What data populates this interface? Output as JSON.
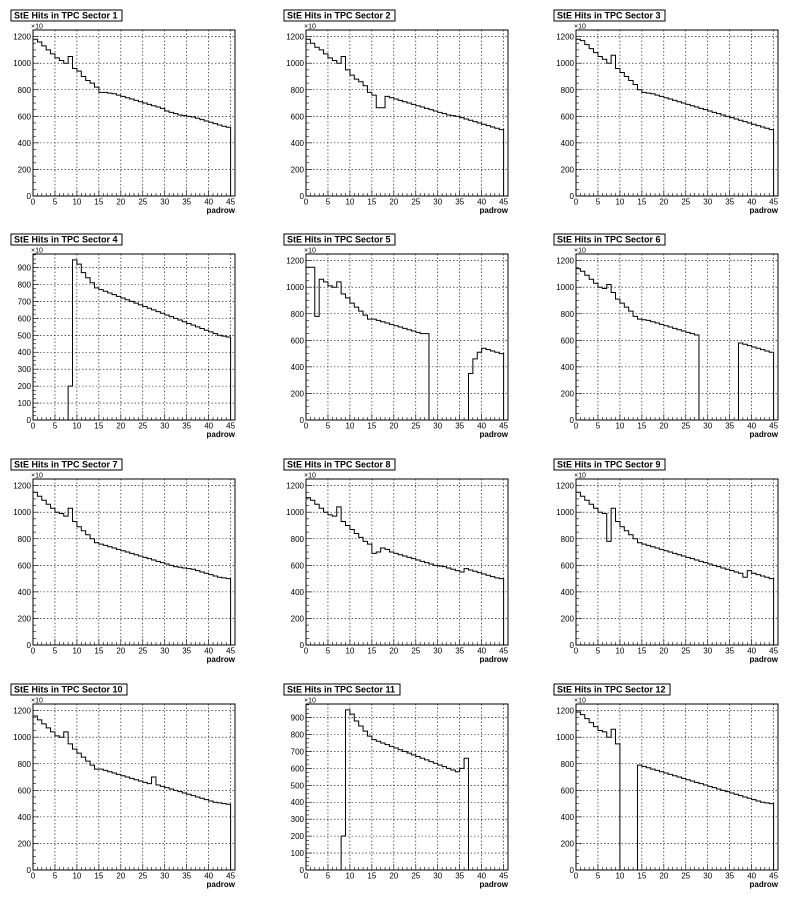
{
  "chart_data": [
    {
      "type": "histogram",
      "title": "StE Hits in TPC Sector 1",
      "xlabel": "padrow",
      "ylabel": "",
      "y_exponent": "10",
      "xlim": [
        0,
        46
      ],
      "ylim": [
        0,
        1250
      ],
      "x_ticks": [
        0,
        5,
        10,
        15,
        20,
        25,
        30,
        35,
        40,
        45
      ],
      "y_ticks": [
        0,
        200,
        400,
        600,
        800,
        1000,
        1200
      ],
      "grid": true,
      "bins_start": 0,
      "bin_width": 1,
      "values": [
        1180,
        1160,
        1130,
        1100,
        1070,
        1040,
        1020,
        1000,
        1050,
        960,
        940,
        900,
        870,
        850,
        820,
        780,
        780,
        775,
        770,
        760,
        750,
        740,
        730,
        720,
        710,
        700,
        690,
        680,
        670,
        660,
        640,
        630,
        620,
        610,
        605,
        600,
        595,
        585,
        575,
        565,
        555,
        545,
        535,
        525,
        518,
        0
      ]
    },
    {
      "type": "histogram",
      "title": "StE Hits in TPC Sector 2",
      "xlabel": "padrow",
      "ylabel": "",
      "y_exponent": "10",
      "xlim": [
        0,
        46
      ],
      "ylim": [
        0,
        1250
      ],
      "x_ticks": [
        0,
        5,
        10,
        15,
        20,
        25,
        30,
        35,
        40,
        45
      ],
      "y_ticks": [
        0,
        200,
        400,
        600,
        800,
        1000,
        1200
      ],
      "grid": true,
      "bins_start": 0,
      "bin_width": 1,
      "values": [
        1180,
        1150,
        1120,
        1100,
        1070,
        1040,
        1020,
        1000,
        1050,
        950,
        910,
        880,
        860,
        830,
        780,
        760,
        665,
        665,
        750,
        740,
        730,
        720,
        710,
        700,
        690,
        680,
        670,
        660,
        650,
        640,
        630,
        620,
        610,
        605,
        600,
        590,
        580,
        570,
        560,
        550,
        540,
        530,
        520,
        510,
        500,
        0
      ]
    },
    {
      "type": "histogram",
      "title": "StE Hits in TPC Sector 3",
      "xlabel": "padrow",
      "ylabel": "",
      "y_exponent": "10",
      "xlim": [
        0,
        46
      ],
      "ylim": [
        0,
        1250
      ],
      "x_ticks": [
        0,
        5,
        10,
        15,
        20,
        25,
        30,
        35,
        40,
        45
      ],
      "y_ticks": [
        0,
        200,
        400,
        600,
        800,
        1000,
        1200
      ],
      "grid": true,
      "bins_start": 0,
      "bin_width": 1,
      "values": [
        1180,
        1170,
        1140,
        1110,
        1080,
        1050,
        1030,
        1000,
        1060,
        960,
        930,
        900,
        870,
        840,
        800,
        780,
        775,
        770,
        760,
        750,
        740,
        730,
        720,
        710,
        700,
        690,
        680,
        670,
        660,
        650,
        640,
        630,
        620,
        610,
        600,
        590,
        580,
        570,
        560,
        550,
        540,
        530,
        520,
        510,
        500,
        0
      ]
    },
    {
      "type": "histogram",
      "title": "StE Hits in TPC Sector 4",
      "xlabel": "padrow",
      "ylabel": "",
      "y_exponent": "10",
      "xlim": [
        0,
        46
      ],
      "ylim": [
        0,
        980
      ],
      "x_ticks": [
        0,
        5,
        10,
        15,
        20,
        25,
        30,
        35,
        40,
        45
      ],
      "y_ticks": [
        0,
        100,
        200,
        300,
        400,
        500,
        600,
        700,
        800,
        900
      ],
      "grid": true,
      "bins_start": 0,
      "bin_width": 1,
      "values": [
        0,
        0,
        0,
        0,
        0,
        0,
        0,
        0,
        200,
        945,
        920,
        870,
        840,
        810,
        780,
        770,
        760,
        750,
        740,
        730,
        720,
        710,
        700,
        690,
        680,
        670,
        660,
        650,
        640,
        630,
        620,
        610,
        600,
        590,
        580,
        570,
        560,
        550,
        540,
        530,
        520,
        510,
        500,
        495,
        490,
        0
      ]
    },
    {
      "type": "histogram",
      "title": "StE Hits in TPC Sector 5",
      "xlabel": "padrow",
      "ylabel": "",
      "y_exponent": "10",
      "xlim": [
        0,
        46
      ],
      "ylim": [
        0,
        1250
      ],
      "x_ticks": [
        0,
        5,
        10,
        15,
        20,
        25,
        30,
        35,
        40,
        45
      ],
      "y_ticks": [
        0,
        200,
        400,
        600,
        800,
        1000,
        1200
      ],
      "grid": true,
      "bins_start": 0,
      "bin_width": 1,
      "values": [
        1150,
        1150,
        780,
        1060,
        1040,
        1010,
        1000,
        1040,
        950,
        920,
        880,
        850,
        820,
        790,
        760,
        760,
        750,
        740,
        730,
        720,
        710,
        700,
        690,
        680,
        670,
        660,
        650,
        650,
        0,
        0,
        0,
        0,
        0,
        0,
        0,
        0,
        0,
        350,
        460,
        510,
        540,
        530,
        520,
        510,
        500,
        0
      ]
    },
    {
      "type": "histogram",
      "title": "StE Hits in TPC Sector 6",
      "xlabel": "padrow",
      "ylabel": "",
      "y_exponent": "10",
      "xlim": [
        0,
        46
      ],
      "ylim": [
        0,
        1250
      ],
      "x_ticks": [
        0,
        5,
        10,
        15,
        20,
        25,
        30,
        35,
        40,
        45
      ],
      "y_ticks": [
        0,
        200,
        400,
        600,
        800,
        1000,
        1200
      ],
      "grid": true,
      "bins_start": 0,
      "bin_width": 1,
      "values": [
        1140,
        1120,
        1090,
        1060,
        1030,
        1000,
        990,
        1020,
        960,
        910,
        880,
        850,
        820,
        780,
        760,
        755,
        750,
        740,
        730,
        720,
        710,
        700,
        690,
        680,
        670,
        660,
        650,
        640,
        0,
        0,
        0,
        0,
        0,
        0,
        0,
        0,
        0,
        580,
        570,
        560,
        550,
        540,
        530,
        520,
        510,
        0
      ]
    },
    {
      "type": "histogram",
      "title": "StE Hits in TPC Sector 7",
      "xlabel": "padrow",
      "ylabel": "",
      "y_exponent": "10",
      "xlim": [
        0,
        46
      ],
      "ylim": [
        0,
        1250
      ],
      "x_ticks": [
        0,
        5,
        10,
        15,
        20,
        25,
        30,
        35,
        40,
        45
      ],
      "y_ticks": [
        0,
        200,
        400,
        600,
        800,
        1000,
        1200
      ],
      "grid": true,
      "bins_start": 0,
      "bin_width": 1,
      "values": [
        1150,
        1120,
        1090,
        1060,
        1030,
        1000,
        990,
        970,
        1030,
        930,
        890,
        860,
        830,
        800,
        770,
        760,
        750,
        740,
        730,
        720,
        710,
        700,
        690,
        680,
        670,
        660,
        650,
        640,
        630,
        620,
        610,
        600,
        590,
        585,
        580,
        575,
        570,
        560,
        550,
        540,
        530,
        520,
        510,
        505,
        500,
        0
      ]
    },
    {
      "type": "histogram",
      "title": "StE Hits in TPC Sector 8",
      "xlabel": "padrow",
      "ylabel": "",
      "y_exponent": "10",
      "xlim": [
        0,
        46
      ],
      "ylim": [
        0,
        1250
      ],
      "x_ticks": [
        0,
        5,
        10,
        15,
        20,
        25,
        30,
        35,
        40,
        45
      ],
      "y_ticks": [
        0,
        200,
        400,
        600,
        800,
        1000,
        1200
      ],
      "grid": true,
      "bins_start": 0,
      "bin_width": 1,
      "values": [
        1110,
        1090,
        1060,
        1030,
        1000,
        980,
        970,
        1040,
        930,
        900,
        870,
        840,
        810,
        780,
        760,
        690,
        700,
        730,
        720,
        700,
        690,
        680,
        670,
        660,
        650,
        640,
        630,
        620,
        610,
        600,
        595,
        590,
        580,
        570,
        560,
        550,
        575,
        565,
        555,
        545,
        535,
        525,
        515,
        505,
        500,
        0
      ]
    },
    {
      "type": "histogram",
      "title": "StE Hits in TPC Sector 9",
      "xlabel": "padrow",
      "ylabel": "",
      "y_exponent": "10",
      "xlim": [
        0,
        46
      ],
      "ylim": [
        0,
        1250
      ],
      "x_ticks": [
        0,
        5,
        10,
        15,
        20,
        25,
        30,
        35,
        40,
        45
      ],
      "y_ticks": [
        0,
        200,
        400,
        600,
        800,
        1000,
        1200
      ],
      "grid": true,
      "bins_start": 0,
      "bin_width": 1,
      "values": [
        1150,
        1120,
        1090,
        1060,
        1030,
        1000,
        990,
        780,
        1030,
        930,
        890,
        860,
        830,
        800,
        770,
        760,
        750,
        740,
        730,
        720,
        710,
        700,
        690,
        680,
        670,
        660,
        650,
        640,
        630,
        620,
        610,
        600,
        590,
        580,
        570,
        560,
        550,
        540,
        510,
        560,
        540,
        530,
        520,
        510,
        500,
        0
      ]
    },
    {
      "type": "histogram",
      "title": "StE Hits in TPC Sector 10",
      "xlabel": "padrow",
      "ylabel": "",
      "y_exponent": "10",
      "xlim": [
        0,
        46
      ],
      "ylim": [
        0,
        1250
      ],
      "x_ticks": [
        0,
        5,
        10,
        15,
        20,
        25,
        30,
        35,
        40,
        45
      ],
      "y_ticks": [
        0,
        200,
        400,
        600,
        800,
        1000,
        1200
      ],
      "grid": true,
      "bins_start": 0,
      "bin_width": 1,
      "values": [
        1160,
        1130,
        1100,
        1070,
        1040,
        1010,
        1000,
        1040,
        950,
        910,
        880,
        850,
        820,
        790,
        760,
        760,
        750,
        740,
        730,
        720,
        710,
        700,
        690,
        680,
        670,
        660,
        650,
        700,
        640,
        630,
        620,
        610,
        600,
        590,
        580,
        570,
        560,
        550,
        540,
        530,
        520,
        510,
        505,
        500,
        495,
        0
      ]
    },
    {
      "type": "histogram",
      "title": "StE Hits in TPC Sector 11",
      "xlabel": "padrow",
      "ylabel": "",
      "y_exponent": "10",
      "xlim": [
        0,
        46
      ],
      "ylim": [
        0,
        980
      ],
      "x_ticks": [
        0,
        5,
        10,
        15,
        20,
        25,
        30,
        35,
        40,
        45
      ],
      "y_ticks": [
        0,
        100,
        200,
        300,
        400,
        500,
        600,
        700,
        800,
        900
      ],
      "grid": true,
      "bins_start": 0,
      "bin_width": 1,
      "values": [
        0,
        0,
        0,
        0,
        0,
        0,
        0,
        0,
        200,
        945,
        920,
        880,
        850,
        820,
        790,
        770,
        760,
        750,
        740,
        730,
        720,
        710,
        700,
        690,
        680,
        670,
        660,
        650,
        640,
        630,
        620,
        610,
        600,
        590,
        580,
        600,
        660,
        0,
        0,
        0,
        0,
        0,
        0,
        0,
        0,
        0
      ]
    },
    {
      "type": "histogram",
      "title": "StE Hits in TPC Sector 12",
      "xlabel": "padrow",
      "ylabel": "",
      "y_exponent": "10",
      "xlim": [
        0,
        46
      ],
      "ylim": [
        0,
        1250
      ],
      "x_ticks": [
        0,
        5,
        10,
        15,
        20,
        25,
        30,
        35,
        40,
        45
      ],
      "y_ticks": [
        0,
        200,
        400,
        600,
        800,
        1000,
        1200
      ],
      "grid": true,
      "bins_start": 0,
      "bin_width": 1,
      "values": [
        1190,
        1170,
        1140,
        1110,
        1080,
        1050,
        1040,
        1000,
        1060,
        950,
        0,
        0,
        0,
        0,
        790,
        780,
        770,
        760,
        750,
        740,
        730,
        720,
        710,
        700,
        690,
        680,
        670,
        660,
        650,
        640,
        630,
        620,
        610,
        600,
        590,
        580,
        570,
        560,
        550,
        540,
        530,
        520,
        510,
        505,
        500,
        0
      ]
    }
  ]
}
